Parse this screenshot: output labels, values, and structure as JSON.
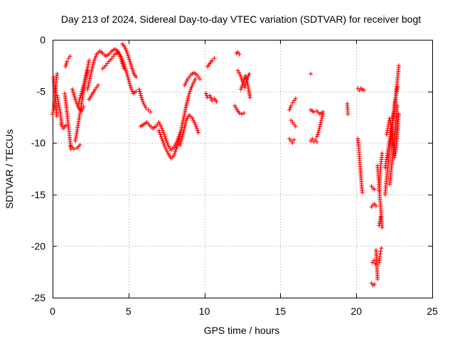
{
  "chart_data": {
    "type": "scatter",
    "title": "Day 213 of 2024, Sidereal Day-to-day VTEC variation (SDTVAR) for receiver bogt",
    "xlabel": "GPS time / hours",
    "ylabel": "SDTVAR / TECUs",
    "xlim": [
      0,
      25
    ],
    "ylim": [
      -25,
      0
    ],
    "xticks": [
      0,
      5,
      10,
      15,
      20,
      25
    ],
    "xtick_labels": [
      "0",
      "5",
      "10",
      "15",
      "20",
      "25"
    ],
    "yticks": [
      0,
      -5,
      -10,
      -15,
      -20,
      -25
    ],
    "ytick_labels": [
      "0",
      "-5",
      "-10",
      "-15",
      "-20",
      "-25"
    ],
    "grid": true,
    "marker": "+",
    "series": [
      {
        "name": "SDTVAR",
        "color": "#ff0000",
        "segments": [
          {
            "x": [
              0.0,
              0.08,
              0.15,
              0.22,
              0.3
            ],
            "y": [
              -7.2,
              -6.6,
              -5.6,
              -4.2,
              -3.3
            ]
          },
          {
            "x": [
              0.05,
              0.12,
              0.2,
              0.28
            ],
            "y": [
              -3.6,
              -4.6,
              -5.8,
              -7.4
            ]
          },
          {
            "x": [
              0.3,
              0.4,
              0.5,
              0.6
            ],
            "y": [
              -5.4,
              -6.2,
              -7.0,
              -8.2
            ]
          },
          {
            "x": [
              0.55,
              0.7,
              0.85
            ],
            "y": [
              -8.2,
              -8.6,
              -8.3
            ]
          },
          {
            "x": [
              0.8,
              0.9,
              1.0,
              1.1,
              1.2
            ],
            "y": [
              -5.2,
              -6.4,
              -7.8,
              -9.1,
              -10.6
            ]
          },
          {
            "x": [
              0.85,
              0.95,
              1.05,
              1.15
            ],
            "y": [
              -2.6,
              -2.1,
              -1.8,
              -1.6
            ]
          },
          {
            "x": [
              1.2,
              1.4,
              1.6,
              1.8
            ],
            "y": [
              -10.3,
              -10.6,
              -10.5,
              -10.2
            ]
          },
          {
            "x": [
              1.3,
              1.5,
              1.7,
              1.9,
              2.05
            ],
            "y": [
              -4.8,
              -5.8,
              -6.6,
              -6.9,
              -6.5
            ]
          },
          {
            "x": [
              1.5,
              1.65,
              1.8,
              1.95,
              2.1,
              2.25,
              2.4
            ],
            "y": [
              -9.8,
              -8.5,
              -7.2,
              -5.8,
              -4.4,
              -3.1,
              -2.0
            ]
          },
          {
            "x": [
              1.7,
              1.85,
              2.0,
              2.15,
              2.3
            ],
            "y": [
              -6.2,
              -5.4,
              -4.6,
              -3.8,
              -3.0
            ]
          },
          {
            "x": [
              2.3,
              2.5,
              2.7,
              2.9,
              3.1,
              3.3,
              3.5,
              3.7,
              3.9,
              4.1,
              4.3,
              4.5,
              4.7
            ],
            "y": [
              -4.8,
              -3.4,
              -2.2,
              -1.4,
              -1.1,
              -1.3,
              -1.6,
              -1.4,
              -1.1,
              -0.9,
              -1.1,
              -1.8,
              -2.8
            ]
          },
          {
            "x": [
              2.4,
              2.6,
              2.8,
              3.0
            ],
            "y": [
              -5.8,
              -5.3,
              -4.8,
              -4.4
            ]
          },
          {
            "x": [
              3.3,
              3.5,
              3.7,
              3.9,
              4.1,
              4.3,
              4.5,
              4.7,
              4.9,
              5.1,
              5.3,
              5.5
            ],
            "y": [
              -2.8,
              -2.5,
              -2.1,
              -1.8,
              -1.4,
              -1.2,
              -1.6,
              -2.4,
              -3.3,
              -4.4,
              -5.2,
              -5.0
            ]
          },
          {
            "x": [
              4.6,
              4.75,
              4.9,
              5.05,
              5.2,
              5.35,
              5.5
            ],
            "y": [
              -0.4,
              -0.7,
              -1.2,
              -1.9,
              -2.6,
              -3.3,
              -3.6
            ]
          },
          {
            "x": [
              5.7,
              5.85,
              6.0,
              6.15,
              6.3,
              6.45
            ],
            "y": [
              -4.8,
              -5.6,
              -6.2,
              -6.6,
              -6.8,
              -7.0
            ]
          },
          {
            "x": [
              5.8,
              6.0,
              6.2,
              6.4,
              6.6,
              6.8,
              7.0,
              7.2,
              7.4,
              7.6,
              7.8,
              8.0,
              8.2,
              8.4
            ],
            "y": [
              -8.4,
              -8.2,
              -8.0,
              -8.3,
              -8.6,
              -8.4,
              -8.0,
              -8.6,
              -9.4,
              -10.2,
              -10.7,
              -10.4,
              -9.8,
              -9.0
            ]
          },
          {
            "x": [
              7.0,
              7.2,
              7.4,
              7.6,
              7.8,
              8.0,
              8.2,
              8.4,
              8.6,
              8.8,
              9.0,
              9.2,
              9.4
            ],
            "y": [
              -8.8,
              -9.6,
              -10.4,
              -11.0,
              -11.5,
              -11.2,
              -10.3,
              -9.2,
              -7.8,
              -6.4,
              -5.2,
              -4.4,
              -3.8
            ]
          },
          {
            "x": [
              8.4,
              8.6,
              8.8,
              9.0,
              9.2,
              9.4,
              9.6
            ],
            "y": [
              -10.2,
              -9.0,
              -7.8,
              -7.3,
              -7.6,
              -8.2,
              -9.0
            ]
          },
          {
            "x": [
              8.7,
              8.9,
              9.1,
              9.3,
              9.5,
              9.7
            ],
            "y": [
              -4.4,
              -3.8,
              -3.4,
              -3.2,
              -3.4,
              -3.8
            ]
          },
          {
            "x": [
              10.1,
              10.2,
              10.35,
              10.5,
              10.65,
              10.8
            ],
            "y": [
              -5.2,
              -5.6,
              -5.4,
              -5.9,
              -5.7,
              -6.0
            ]
          },
          {
            "x": [
              10.2,
              10.35,
              10.5,
              10.65
            ],
            "y": [
              -2.6,
              -2.3,
              -2.0,
              -1.8
            ]
          },
          {
            "x": [
              12.1,
              12.2,
              12.3
            ],
            "y": [
              -1.3,
              -1.2,
              -1.4
            ]
          },
          {
            "x": [
              12.0,
              12.15,
              12.3,
              12.45,
              12.6
            ],
            "y": [
              -6.4,
              -6.8,
              -7.1,
              -7.2,
              -7.1
            ]
          },
          {
            "x": [
              12.2,
              12.35,
              12.5,
              12.65,
              12.8,
              12.95
            ],
            "y": [
              -3.0,
              -3.4,
              -4.0,
              -4.6,
              -3.8,
              -3.3
            ]
          },
          {
            "x": [
              12.4,
              12.55,
              12.7,
              12.85,
              13.0
            ],
            "y": [
              -4.8,
              -4.2,
              -3.5,
              -4.4,
              -5.6
            ]
          },
          {
            "x": [
              15.6,
              15.7,
              15.8,
              15.9
            ],
            "y": [
              -9.6,
              -9.8,
              -10.0,
              -9.7
            ]
          },
          {
            "x": [
              15.6,
              15.7,
              15.8,
              15.9,
              16.0
            ],
            "y": [
              -6.8,
              -6.4,
              -6.1,
              -5.9,
              -5.7
            ]
          },
          {
            "x": [
              15.7,
              15.8,
              15.9,
              16.0
            ],
            "y": [
              -7.8,
              -8.0,
              -8.2,
              -8.4
            ]
          },
          {
            "x": [
              17.0
            ],
            "y": [
              -3.3
            ]
          },
          {
            "x": [
              17.0,
              17.1,
              17.2,
              17.3,
              17.4
            ],
            "y": [
              -9.8,
              -9.6,
              -9.9,
              -9.7,
              -9.9
            ]
          },
          {
            "x": [
              17.0,
              17.2,
              17.4,
              17.6,
              17.8
            ],
            "y": [
              -6.8,
              -7.0,
              -6.9,
              -7.2,
              -7.0
            ]
          },
          {
            "x": [
              17.4,
              17.5,
              17.6,
              17.7,
              17.8
            ],
            "y": [
              -9.4,
              -9.0,
              -8.4,
              -7.8,
              -7.2
            ]
          },
          {
            "x": [
              19.4,
              19.45
            ],
            "y": [
              -6.2,
              -7.2
            ]
          },
          {
            "x": [
              20.1,
              20.2,
              20.3,
              20.4,
              20.5
            ],
            "y": [
              -4.7,
              -4.9,
              -4.7,
              -4.8,
              -4.9
            ]
          },
          {
            "x": [
              20.1,
              20.15,
              20.2,
              20.25,
              20.3,
              20.35,
              20.4
            ],
            "y": [
              -9.6,
              -10.3,
              -11.3,
              -12.3,
              -13.2,
              -14.1,
              -14.8
            ]
          },
          {
            "x": [
              21.0,
              21.1,
              21.2
            ],
            "y": [
              -14.2,
              -14.4,
              -14.5
            ]
          },
          {
            "x": [
              21.0,
              21.1,
              21.2,
              21.3
            ],
            "y": [
              -16.2,
              -16.0,
              -15.9,
              -16.1
            ]
          },
          {
            "x": [
              21.05,
              21.15,
              21.25
            ],
            "y": [
              -21.6,
              -21.4,
              -21.7
            ]
          },
          {
            "x": [
              21.0,
              21.1,
              21.2
            ],
            "y": [
              -23.6,
              -23.8,
              -23.7
            ]
          },
          {
            "x": [
              21.3,
              21.4
            ],
            "y": [
              -20.4,
              -23.2
            ]
          },
          {
            "x": [
              21.4,
              21.45,
              21.5,
              21.55,
              21.6,
              21.65,
              21.7
            ],
            "y": [
              -12.2,
              -13.2,
              -14.2,
              -15.3,
              -16.2,
              -17.3,
              -18.2
            ]
          },
          {
            "x": [
              21.5,
              21.55,
              21.6,
              21.65
            ],
            "y": [
              -21.6,
              -21.0,
              -20.5,
              -20.2
            ]
          },
          {
            "x": [
              21.5,
              21.55,
              21.6,
              21.65,
              21.7
            ],
            "y": [
              -14.6,
              -13.4,
              -12.4,
              -11.6,
              -11.0
            ]
          },
          {
            "x": [
              21.5,
              21.55,
              21.6
            ],
            "y": [
              -18.0,
              -17.6,
              -17.2
            ]
          },
          {
            "x": [
              21.9,
              22.0,
              22.1,
              22.2,
              22.3,
              22.4,
              22.5,
              22.6,
              22.7,
              22.8
            ],
            "y": [
              -15.0,
              -13.4,
              -12.0,
              -10.6,
              -9.2,
              -8.0,
              -6.8,
              -5.4,
              -4.0,
              -2.5
            ]
          },
          {
            "x": [
              21.9,
              22.0,
              22.1,
              22.2,
              22.3,
              22.4,
              22.5,
              22.6,
              22.7
            ],
            "y": [
              -12.4,
              -11.4,
              -10.6,
              -9.6,
              -8.6,
              -7.6,
              -6.6,
              -5.6,
              -4.6
            ]
          },
          {
            "x": [
              22.0,
              22.1,
              22.2,
              22.3,
              22.4,
              22.5,
              22.6,
              22.7,
              22.8
            ],
            "y": [
              -9.2,
              -8.4,
              -7.6,
              -8.4,
              -10.0,
              -11.4,
              -10.8,
              -9.0,
              -7.2
            ]
          },
          {
            "x": [
              22.2,
              22.3,
              22.4,
              22.5,
              22.6,
              22.7
            ],
            "y": [
              -14.0,
              -12.6,
              -11.2,
              -9.6,
              -8.0,
              -6.4
            ]
          }
        ]
      }
    ]
  }
}
